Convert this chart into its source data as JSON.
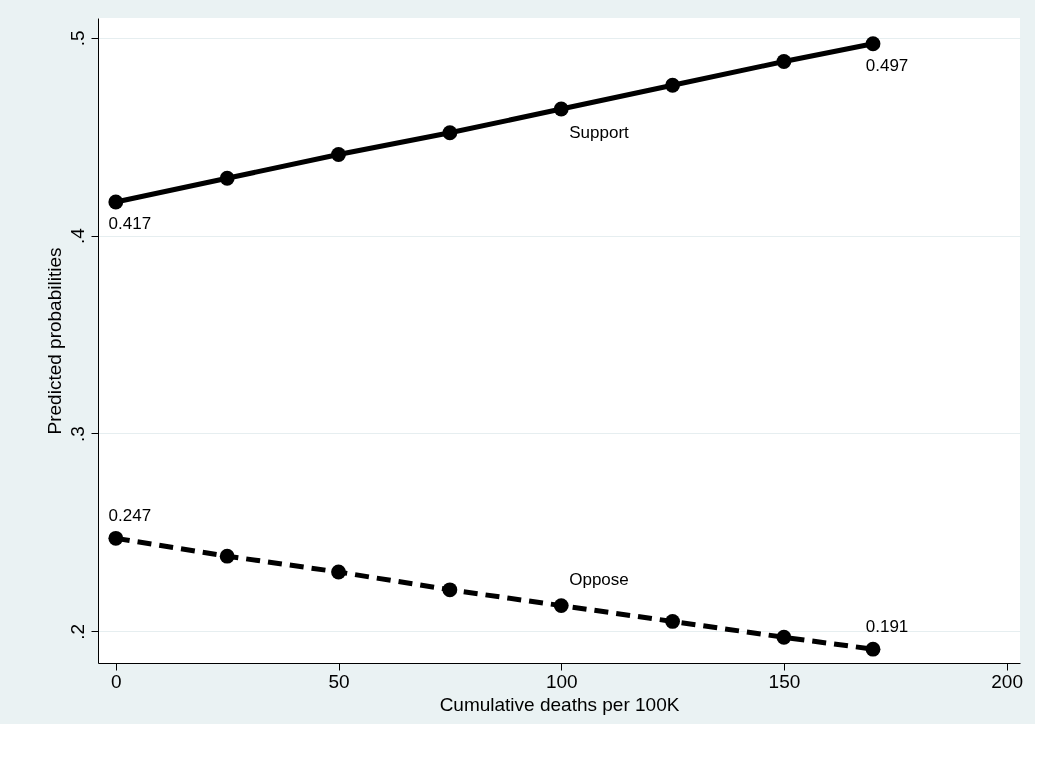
{
  "chart_data": {
    "type": "line",
    "xlabel": "Cumulative deaths per 100K",
    "ylabel": "Predicted probabilities",
    "x": [
      0,
      25,
      50,
      75,
      100,
      125,
      150,
      170
    ],
    "series": [
      {
        "name": "Support",
        "color": "#000000",
        "line_style": "solid",
        "values": [
          0.417,
          0.429,
          0.441,
          0.452,
          0.464,
          0.476,
          0.488,
          0.497
        ],
        "value_labels": [
          "0.417",
          null,
          null,
          null,
          null,
          null,
          null,
          "0.497"
        ]
      },
      {
        "name": "Oppose",
        "color": "#000000",
        "line_style": "dashed",
        "values": [
          0.247,
          0.238,
          0.23,
          0.221,
          0.213,
          0.205,
          0.197,
          0.191
        ],
        "value_labels": [
          "0.247",
          null,
          null,
          null,
          null,
          null,
          null,
          "0.191"
        ]
      }
    ],
    "xlim": [
      -4,
      203
    ],
    "xticks": [
      0,
      50,
      100,
      150,
      200
    ],
    "ylim": [
      0.184,
      0.51
    ],
    "yticks": [
      {
        "value": 0.2,
        "label": ".2"
      },
      {
        "value": 0.3,
        "label": ".3"
      },
      {
        "value": 0.4,
        "label": ".4"
      },
      {
        "value": 0.5,
        "label": ".5"
      }
    ],
    "grid": "y",
    "marker": "circle"
  }
}
